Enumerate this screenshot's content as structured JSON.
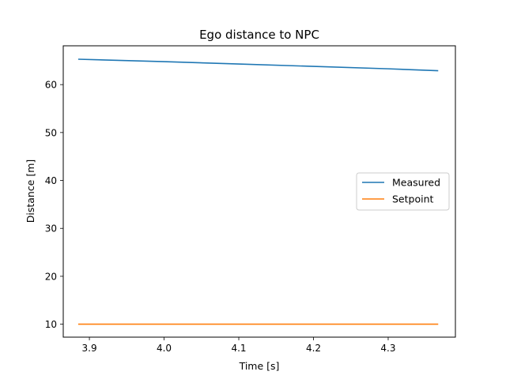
{
  "chart_data": {
    "type": "line",
    "title": "Ego distance to NPC",
    "xlabel": "Time [s]",
    "ylabel": "Distance [m]",
    "xlim": [
      3.865,
      4.39
    ],
    "ylim": [
      7.3,
      68.1
    ],
    "xticks": [
      3.9,
      4.0,
      4.1,
      4.2,
      4.3
    ],
    "xtick_labels": [
      "3.9",
      "4.0",
      "4.1",
      "4.2",
      "4.3"
    ],
    "yticks": [
      10,
      20,
      30,
      40,
      50,
      60
    ],
    "ytick_labels": [
      "10",
      "20",
      "30",
      "40",
      "50",
      "60"
    ],
    "grid": false,
    "legend_position": "center-right",
    "series": [
      {
        "name": "Measured",
        "color": "#1f77b4",
        "x": [
          3.885,
          4.0,
          4.1,
          4.2,
          4.3,
          4.367
        ],
        "y": [
          65.3,
          64.8,
          64.3,
          63.8,
          63.3,
          62.9
        ]
      },
      {
        "name": "Setpoint",
        "color": "#ff7f0e",
        "x": [
          3.885,
          4.367
        ],
        "y": [
          10.0,
          10.0
        ]
      }
    ]
  }
}
